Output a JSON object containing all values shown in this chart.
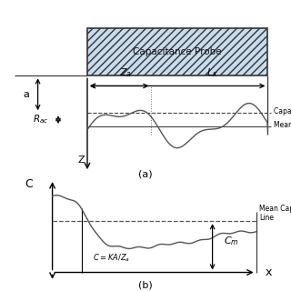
{
  "bg_color": "#ffffff",
  "probe_label": "Capacitance Probe",
  "probe_fill": "#c8dcee",
  "probe_hatch": "////",
  "subplot_a_label": "(a)",
  "subplot_b_label": "(b)",
  "capacitance_line_label": "Capacitance Line",
  "mean_line_label": "Mean Line",
  "mean_cap_line_label": "Mean Capacitance\nLine",
  "a_label": "a",
  "z_label": "Z",
  "C_label": "C",
  "x_label": "x",
  "C_formula": "C = KA/Z_a",
  "Cm_label": "C_m"
}
